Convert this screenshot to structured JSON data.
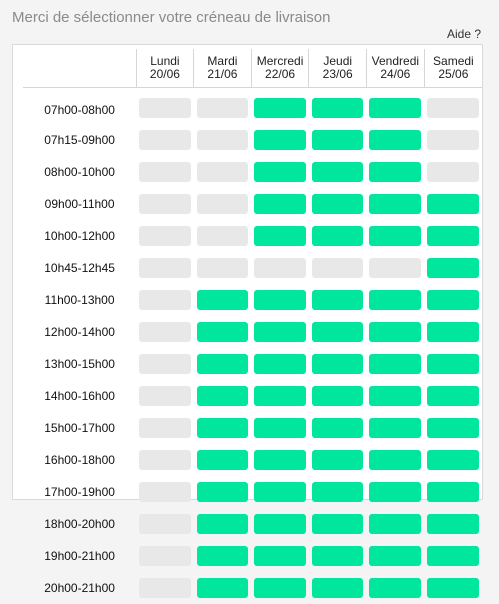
{
  "header": {
    "title": "Merci de sélectionner votre créneau de livraison",
    "help_label": "Aide ?"
  },
  "colors": {
    "available": "#00e79d",
    "unavailable": "#e8e8e8"
  },
  "days": [
    {
      "name": "Lundi",
      "date": "20/06"
    },
    {
      "name": "Mardi",
      "date": "21/06"
    },
    {
      "name": "Mercredi",
      "date": "22/06"
    },
    {
      "name": "Jeudi",
      "date": "23/06"
    },
    {
      "name": "Vendredi",
      "date": "24/06"
    },
    {
      "name": "Samedi",
      "date": "25/06"
    }
  ],
  "slots": [
    {
      "label": "07h00-08h00",
      "availability": [
        false,
        false,
        true,
        true,
        true,
        false
      ]
    },
    {
      "label": "07h15-09h00",
      "availability": [
        false,
        false,
        true,
        true,
        true,
        false
      ]
    },
    {
      "label": "08h00-10h00",
      "availability": [
        false,
        false,
        true,
        true,
        true,
        false
      ]
    },
    {
      "label": "09h00-11h00",
      "availability": [
        false,
        false,
        true,
        true,
        true,
        true
      ]
    },
    {
      "label": "10h00-12h00",
      "availability": [
        false,
        false,
        true,
        true,
        true,
        true
      ]
    },
    {
      "label": "10h45-12h45",
      "availability": [
        false,
        false,
        false,
        false,
        false,
        true
      ]
    },
    {
      "label": "11h00-13h00",
      "availability": [
        false,
        true,
        true,
        true,
        true,
        true
      ]
    },
    {
      "label": "12h00-14h00",
      "availability": [
        false,
        true,
        true,
        true,
        true,
        true
      ]
    },
    {
      "label": "13h00-15h00",
      "availability": [
        false,
        true,
        true,
        true,
        true,
        true
      ]
    },
    {
      "label": "14h00-16h00",
      "availability": [
        false,
        true,
        true,
        true,
        true,
        true
      ]
    },
    {
      "label": "15h00-17h00",
      "availability": [
        false,
        true,
        true,
        true,
        true,
        true
      ]
    },
    {
      "label": "16h00-18h00",
      "availability": [
        false,
        true,
        true,
        true,
        true,
        true
      ]
    },
    {
      "label": "17h00-19h00",
      "availability": [
        false,
        true,
        true,
        true,
        true,
        true
      ]
    },
    {
      "label": "18h00-20h00",
      "availability": [
        false,
        true,
        true,
        true,
        true,
        true
      ]
    },
    {
      "label": "19h00-21h00",
      "availability": [
        false,
        true,
        true,
        true,
        true,
        true
      ]
    },
    {
      "label": "20h00-21h00",
      "availability": [
        false,
        true,
        true,
        true,
        true,
        true
      ]
    }
  ]
}
